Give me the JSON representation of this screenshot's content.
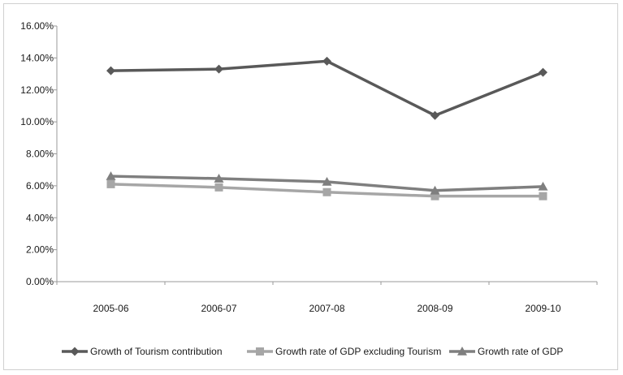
{
  "chart_data": {
    "type": "line",
    "categories": [
      "2005-06",
      "2006-07",
      "2007-08",
      "2008-09",
      "2009-10"
    ],
    "ylim": [
      0,
      16
    ],
    "yticks": [
      "0.00%",
      "2.00%",
      "4.00%",
      "6.00%",
      "8.00%",
      "10.00%",
      "12.00%",
      "14.00%",
      "16.00%"
    ],
    "grid": false,
    "legend_position": "bottom",
    "series": [
      {
        "name": "Growth of Tourism contribution",
        "values": [
          13.2,
          13.3,
          13.8,
          10.4,
          13.1
        ],
        "color": "#595959",
        "marker": "diamond"
      },
      {
        "name": "Growth rate of GDP excluding Tourism",
        "values": [
          6.1,
          5.9,
          5.6,
          5.35,
          5.35
        ],
        "color": "#a6a6a6",
        "marker": "square"
      },
      {
        "name": "Growth rate of GDP",
        "values": [
          6.6,
          6.45,
          6.25,
          5.7,
          5.95
        ],
        "color": "#7f7f7f",
        "marker": "triangle"
      }
    ]
  }
}
